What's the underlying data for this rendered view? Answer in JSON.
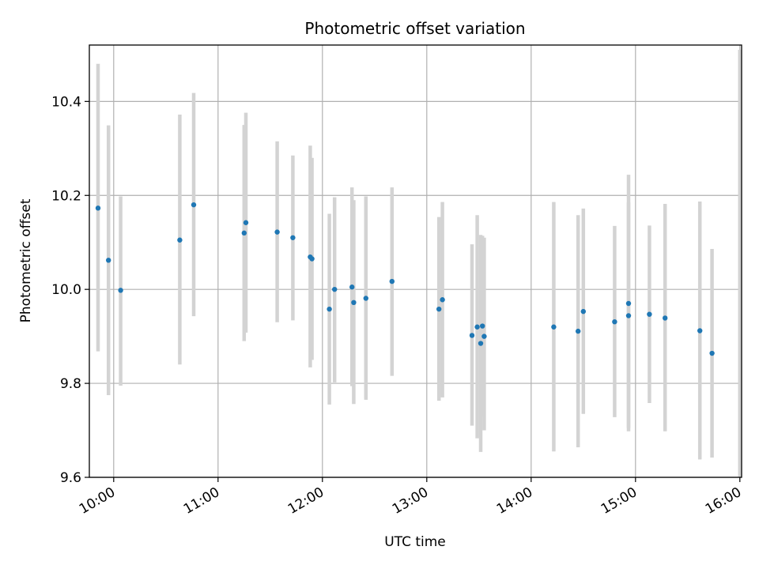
{
  "chart_data": {
    "type": "scatter",
    "title": "Photometric offset variation",
    "xlabel": "UTC time",
    "ylabel": "Photometric offset",
    "xlim": [
      "09:46",
      "16:01"
    ],
    "ylim": [
      9.6,
      10.52
    ],
    "x_ticks": [
      "10:00",
      "11:00",
      "12:00",
      "13:00",
      "14:00",
      "15:00",
      "16:00"
    ],
    "y_ticks": [
      "9.6",
      "9.8",
      "10.0",
      "10.2",
      "10.4"
    ],
    "grid": true,
    "colors": {
      "point": "#1f77b4",
      "errorbar": "#d3d3d3",
      "grid": "#b0b0b0",
      "axes": "#000000"
    },
    "series": [
      {
        "points": [
          {
            "x": "09:51",
            "y": 10.173,
            "ymin": 9.868,
            "ymax": 10.48
          },
          {
            "x": "09:57",
            "y": 10.062,
            "ymin": 9.775,
            "ymax": 10.349
          },
          {
            "x": "10:04",
            "y": 9.998,
            "ymin": 9.795,
            "ymax": 10.198
          },
          {
            "x": "10:38",
            "y": 10.105,
            "ymin": 9.84,
            "ymax": 10.372
          },
          {
            "x": "10:46",
            "y": 10.18,
            "ymin": 9.943,
            "ymax": 10.418
          },
          {
            "x": "11:15",
            "y": 10.12,
            "ymin": 9.89,
            "ymax": 10.35
          },
          {
            "x": "11:16",
            "y": 10.142,
            "ymin": 9.908,
            "ymax": 10.376
          },
          {
            "x": "11:34",
            "y": 10.122,
            "ymin": 9.93,
            "ymax": 10.315
          },
          {
            "x": "11:43",
            "y": 10.11,
            "ymin": 9.934,
            "ymax": 10.285
          },
          {
            "x": "11:53",
            "y": 10.069,
            "ymin": 9.834,
            "ymax": 10.306
          },
          {
            "x": "11:54",
            "y": 10.065,
            "ymin": 9.85,
            "ymax": 10.28
          },
          {
            "x": "12:04",
            "y": 9.958,
            "ymin": 9.755,
            "ymax": 10.161
          },
          {
            "x": "12:07",
            "y": 10.0,
            "ymin": 9.802,
            "ymax": 10.196
          },
          {
            "x": "12:17",
            "y": 10.005,
            "ymin": 9.794,
            "ymax": 10.217
          },
          {
            "x": "12:18",
            "y": 9.972,
            "ymin": 9.756,
            "ymax": 10.19
          },
          {
            "x": "12:25",
            "y": 9.981,
            "ymin": 9.765,
            "ymax": 10.198
          },
          {
            "x": "12:40",
            "y": 10.017,
            "ymin": 9.816,
            "ymax": 10.217
          },
          {
            "x": "13:07",
            "y": 9.958,
            "ymin": 9.763,
            "ymax": 10.154
          },
          {
            "x": "13:09",
            "y": 9.978,
            "ymin": 9.77,
            "ymax": 10.186
          },
          {
            "x": "13:26",
            "y": 9.902,
            "ymin": 9.71,
            "ymax": 10.096
          },
          {
            "x": "13:29",
            "y": 9.92,
            "ymin": 9.683,
            "ymax": 10.158
          },
          {
            "x": "13:31",
            "y": 9.885,
            "ymin": 9.654,
            "ymax": 10.116
          },
          {
            "x": "13:32",
            "y": 9.922,
            "ymin": 9.73,
            "ymax": 10.114
          },
          {
            "x": "13:33",
            "y": 9.9,
            "ymin": 9.7,
            "ymax": 10.11
          },
          {
            "x": "14:13",
            "y": 9.92,
            "ymin": 9.655,
            "ymax": 10.186
          },
          {
            "x": "14:27",
            "y": 9.911,
            "ymin": 9.664,
            "ymax": 10.158
          },
          {
            "x": "14:30",
            "y": 9.953,
            "ymin": 9.735,
            "ymax": 10.172
          },
          {
            "x": "14:48",
            "y": 9.931,
            "ymin": 9.728,
            "ymax": 10.135
          },
          {
            "x": "14:56",
            "y": 9.944,
            "ymin": 9.705,
            "ymax": 10.185
          },
          {
            "x": "14:56",
            "y": 9.97,
            "ymin": 9.698,
            "ymax": 10.244
          },
          {
            "x": "15:08",
            "y": 9.947,
            "ymin": 9.758,
            "ymax": 10.136
          },
          {
            "x": "15:17",
            "y": 9.939,
            "ymin": 9.698,
            "ymax": 10.182
          },
          {
            "x": "15:37",
            "y": 9.912,
            "ymin": 9.638,
            "ymax": 10.187
          },
          {
            "x": "15:44",
            "y": 9.864,
            "ymin": 9.642,
            "ymax": 10.086
          },
          {
            "x": "16:00",
            "y": null,
            "ymin": 9.6,
            "ymax": 10.51
          }
        ]
      }
    ]
  }
}
